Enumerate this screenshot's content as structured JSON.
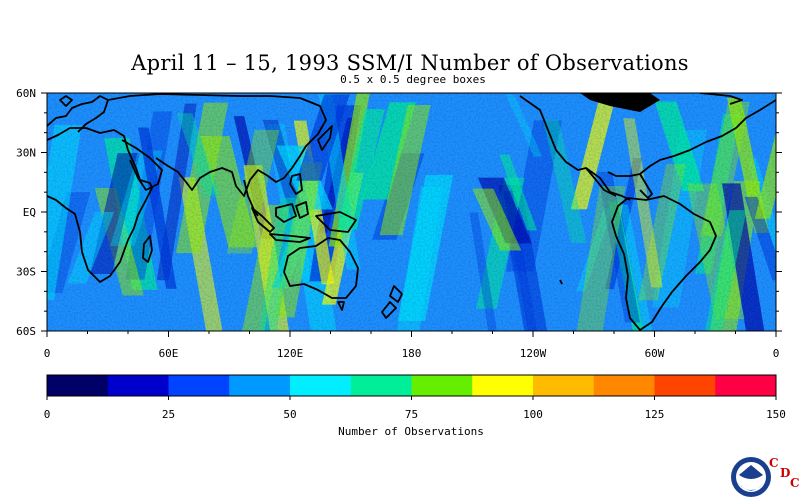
{
  "title": "April 11 – 15, 1993 SSM/I Number of Observations",
  "subtitle": "0.5 x 0.5 degree boxes",
  "map": {
    "y_labels": [
      "60N",
      "30N",
      "EQ",
      "30S",
      "60S"
    ],
    "x_labels": [
      "0",
      "60E",
      "120E",
      "180",
      "120W",
      "60W",
      "0"
    ]
  },
  "colorbar": {
    "title": "Number of Observations",
    "tick_labels": [
      "0",
      "25",
      "50",
      "75",
      "100",
      "125",
      "150"
    ],
    "colors": [
      "#000066",
      "#0000cc",
      "#0044ff",
      "#0099ff",
      "#00eeff",
      "#00ee99",
      "#66ee00",
      "#ffff00",
      "#ffbb00",
      "#ff8800",
      "#ff4400",
      "#ff0044"
    ],
    "range": [
      0,
      150
    ]
  },
  "logo": {
    "name": "NOAA",
    "letters": [
      "C",
      "D",
      "C"
    ]
  }
}
